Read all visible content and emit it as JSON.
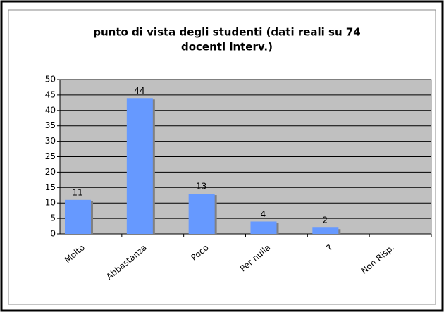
{
  "chart_data": {
    "type": "bar",
    "title": [
      "punto di vista degli studenti (dati reali su 74",
      "docenti interv.)"
    ],
    "categories": [
      "Molto",
      "Abbastanza",
      "Poco",
      "Per nulla",
      "?",
      "Non Risp."
    ],
    "values": [
      11,
      44,
      13,
      4,
      2,
      null
    ],
    "color": "#6699ff",
    "ylim": [
      0,
      50
    ],
    "yticks": [
      0,
      5,
      10,
      15,
      20,
      25,
      30,
      35,
      40,
      45,
      50
    ],
    "grid": true
  }
}
